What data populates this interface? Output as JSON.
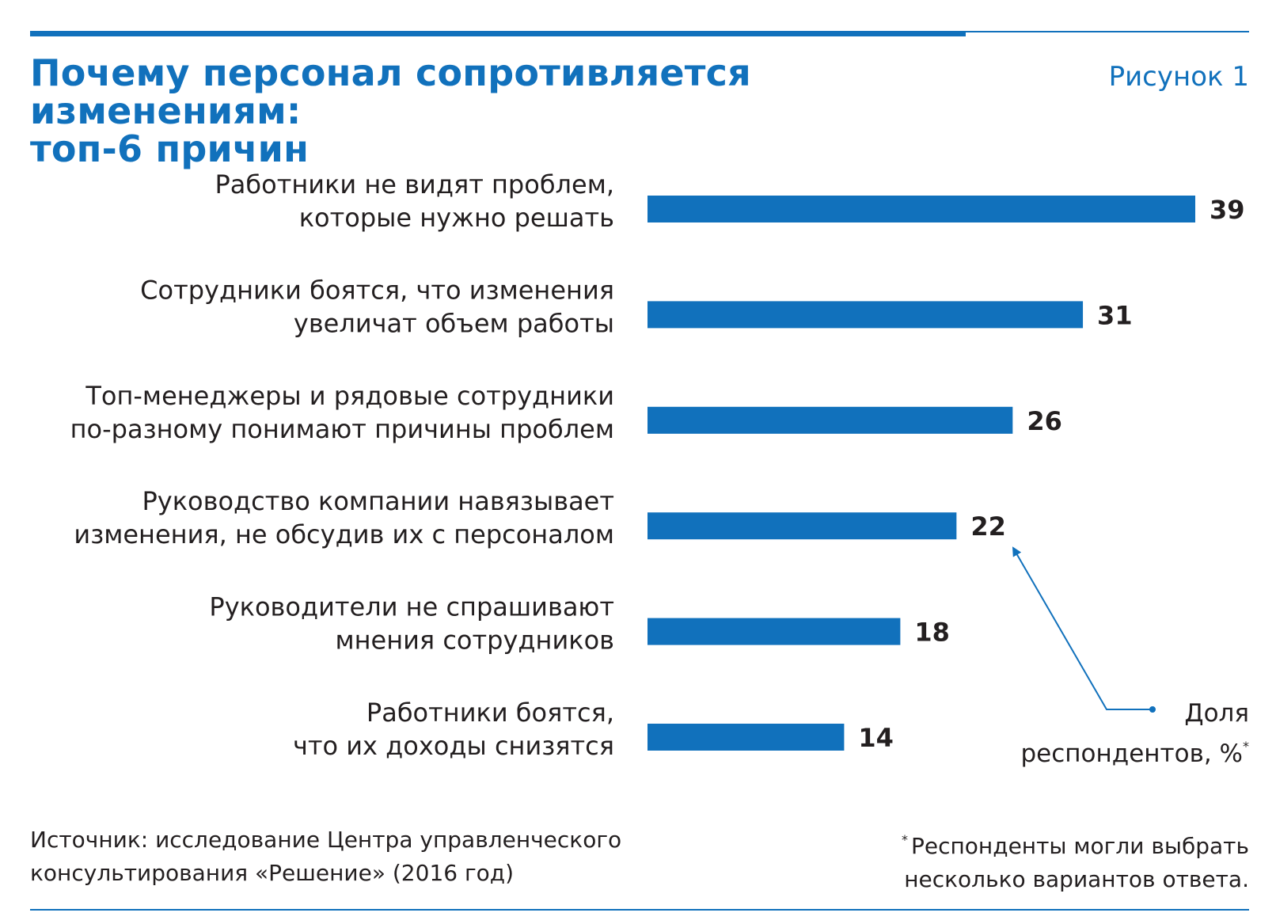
{
  "header": {
    "title": "Почему персонал сопротивляется изменениям:\nтоп-6 причин",
    "figure_label": "Рисунок 1"
  },
  "colors": {
    "accent": "#1171bc",
    "text": "#231f20"
  },
  "chart_data": {
    "type": "bar",
    "orientation": "horizontal",
    "title": "Почему персонал сопротивляется изменениям: топ-6 причин",
    "categories": [
      [
        "Работники не видят проблем,",
        "которые нужно решать"
      ],
      [
        "Сотрудники боятся, что изменения",
        "увеличат объем работы"
      ],
      [
        "Топ-менеджеры и рядовые сотрудники",
        "по-разному понимают причины проблем"
      ],
      [
        "Руководство компании навязывает",
        "изменения, не обсудив их с персоналом"
      ],
      [
        "Руководители не спрашивают",
        "мнения сотрудников"
      ],
      [
        "Работники боятся,",
        "что их доходы снизятся"
      ]
    ],
    "values": [
      39,
      31,
      26,
      22,
      18,
      14
    ],
    "value_labels": [
      "39",
      "31",
      "26",
      "22",
      "18",
      "14"
    ],
    "xlim": [
      0,
      39
    ],
    "grid": false,
    "legend": "none"
  },
  "annotation": {
    "line1": "Доля",
    "line2": "респондентов, %",
    "mark": "*"
  },
  "source": {
    "line1": "Источник: исследование Центра управленческого",
    "line2": "консультирования «Решение» (2016 год)"
  },
  "footnote": {
    "mark": "*",
    "line1": "Респонденты могли выбрать",
    "line2": "несколько вариантов ответа."
  }
}
